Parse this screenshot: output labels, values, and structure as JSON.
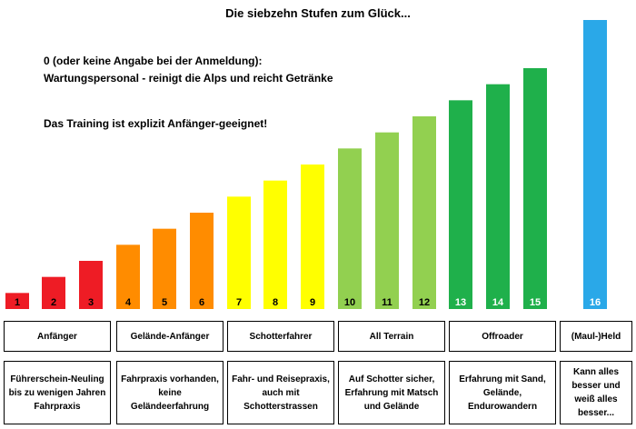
{
  "title": "Die siebzehn Stufen zum Glück...",
  "notes": {
    "line1": "0 (oder keine Angabe bei der Anmeldung):",
    "line2": "Wartungspersonal - reinigt die Alps und reicht Getränke",
    "line3": "Das Training ist explizit Anfänger-geeignet!"
  },
  "chart_data": {
    "type": "bar",
    "title": "Die siebzehn Stufen zum Glück...",
    "xlabel": "",
    "ylabel": "",
    "grid": false,
    "legend": "none",
    "categories": [
      "1",
      "2",
      "3",
      "4",
      "5",
      "6",
      "7",
      "8",
      "9",
      "10",
      "11",
      "12",
      "13",
      "14",
      "15",
      "16"
    ],
    "values": [
      1,
      2,
      3,
      4,
      5,
      6,
      7,
      8,
      9,
      10,
      11,
      12,
      13,
      14,
      15,
      18
    ],
    "ylim": [
      0,
      18
    ],
    "colors": [
      "#ee1c25",
      "#ee1c25",
      "#ee1c25",
      "#ff8c00",
      "#ff8c00",
      "#ff8c00",
      "#ffff00",
      "#ffff00",
      "#ffff00",
      "#92d050",
      "#92d050",
      "#92d050",
      "#1fb04b",
      "#1fb04b",
      "#1fb04b",
      "#2aa8e8"
    ],
    "label_colors": [
      "#000000",
      "#000000",
      "#000000",
      "#000000",
      "#000000",
      "#000000",
      "#000000",
      "#000000",
      "#000000",
      "#000000",
      "#000000",
      "#000000",
      "#ffffff",
      "#ffffff",
      "#ffffff",
      "#ffffff"
    ]
  },
  "groups": [
    {
      "label": "Anfänger",
      "description": "Führerschein-Neuling bis zu wenigen Jahren Fahrpraxis"
    },
    {
      "label": "Gelände-Anfänger",
      "description": "Fahrpraxis vorhanden, keine Geländeerfahrung"
    },
    {
      "label": "Schotterfahrer",
      "description": "Fahr- und Reisepraxis, auch mit Schotterstrassen"
    },
    {
      "label": "All Terrain",
      "description": "Auf Schotter sicher, Erfahrung mit Matsch und Gelände"
    },
    {
      "label": "Offroader",
      "description": "Erfahrung mit Sand, Gelände, Endurowandern"
    },
    {
      "label": "(Maul-)Held",
      "description": "Kann alles besser und weiß alles besser..."
    }
  ]
}
